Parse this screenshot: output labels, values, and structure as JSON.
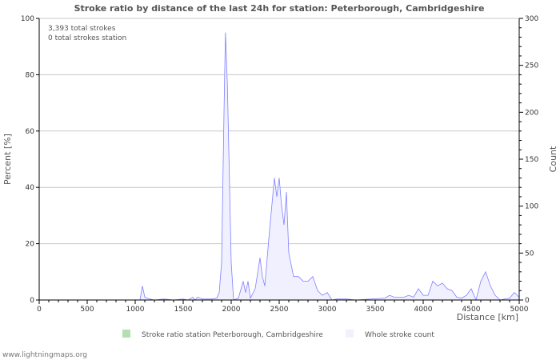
{
  "chart_data": {
    "type": "area",
    "title": "Stroke ratio by distance of the last 24h for station: Peterborough, Cambridgeshire",
    "xlabel": "Distance   [km]",
    "ylabel": "Percent   [%]",
    "y2label": "Count",
    "xlim": [
      0,
      5000
    ],
    "ylim": [
      0,
      100
    ],
    "y2lim": [
      0,
      300
    ],
    "xticks": [
      0,
      500,
      1000,
      1500,
      2000,
      2500,
      3000,
      3500,
      4000,
      4500,
      5000
    ],
    "yticks": [
      0,
      20,
      40,
      60,
      80,
      100
    ],
    "y2ticks": [
      0,
      50,
      100,
      150,
      200,
      250,
      300
    ],
    "grid": true,
    "annotations": [
      "3,393 total strokes",
      "0 total strokes station"
    ],
    "legend_position": "bottom",
    "series": [
      {
        "name": "Stroke ratio station Peterborough, Cambridgeshire",
        "axis": "left",
        "color": "#b3e0b3",
        "x": [],
        "values": []
      },
      {
        "name": "Whole stroke count",
        "axis": "right",
        "color": "#8080ff",
        "fill": "#f0f0ff",
        "x": [
          0,
          1050,
          1075,
          1100,
          1150,
          1200,
          1300,
          1400,
          1500,
          1550,
          1600,
          1625,
          1650,
          1700,
          1800,
          1850,
          1875,
          1900,
          1925,
          1940,
          1960,
          1975,
          2000,
          2025,
          2075,
          2125,
          2150,
          2175,
          2200,
          2250,
          2300,
          2325,
          2350,
          2400,
          2450,
          2475,
          2500,
          2525,
          2550,
          2575,
          2600,
          2650,
          2700,
          2750,
          2800,
          2850,
          2900,
          2950,
          3000,
          3050,
          3100,
          3200,
          3300,
          3600,
          3650,
          3700,
          3800,
          3850,
          3900,
          3950,
          4000,
          4050,
          4100,
          4150,
          4200,
          4250,
          4300,
          4350,
          4400,
          4450,
          4500,
          4550,
          4600,
          4650,
          4700,
          4750,
          4800,
          4900,
          4950,
          5000
        ],
        "values": [
          0,
          0,
          15,
          3,
          1,
          0,
          1,
          0,
          1,
          0,
          3,
          0,
          3,
          1,
          1,
          2,
          8,
          40,
          200,
          285,
          230,
          160,
          40,
          0,
          2,
          20,
          8,
          20,
          2,
          12,
          45,
          25,
          15,
          75,
          130,
          110,
          130,
          100,
          80,
          115,
          50,
          25,
          25,
          20,
          20,
          25,
          10,
          5,
          8,
          0,
          1,
          1,
          0,
          2,
          5,
          3,
          3,
          5,
          3,
          12,
          5,
          5,
          20,
          15,
          18,
          12,
          10,
          3,
          2,
          5,
          12,
          0,
          20,
          30,
          15,
          5,
          0,
          2,
          8,
          3
        ]
      }
    ]
  },
  "watermark": "www.lightningmaps.org"
}
